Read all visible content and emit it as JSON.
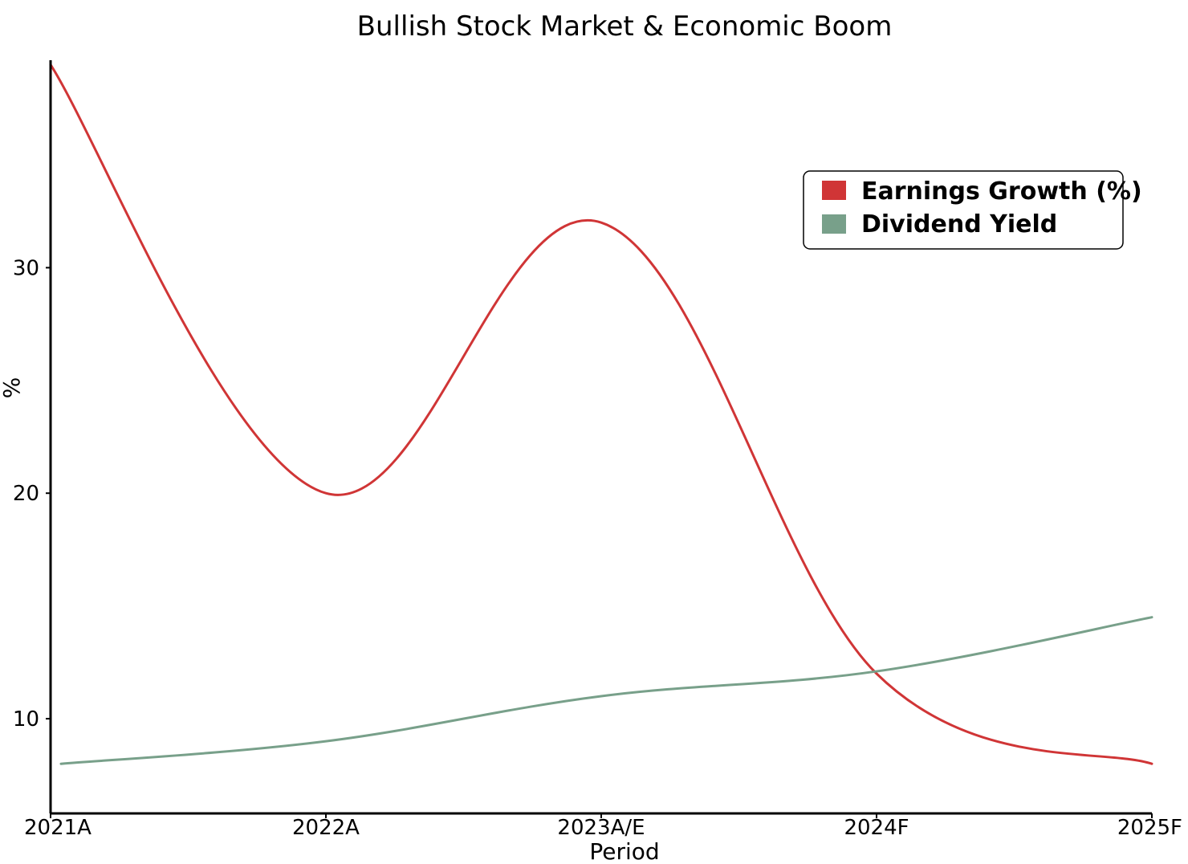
{
  "chart_data": {
    "type": "line",
    "title": "Bullish Stock Market & Economic Boom",
    "xlabel": "Period",
    "ylabel": "%",
    "categories": [
      "2021A",
      "2022A",
      "2023A/E",
      "2024F",
      "2025F"
    ],
    "ylim": [
      5.8,
      39.2
    ],
    "yticks": [
      10,
      20,
      30
    ],
    "legend_position": "top-right",
    "grid": false,
    "series": [
      {
        "name": "Earnings Growth (%)",
        "color": "#d03536",
        "values": [
          39,
          20,
          32,
          12,
          8
        ]
      },
      {
        "name": "Dividend Yield",
        "color": "#78a08a",
        "values": [
          8,
          9,
          11,
          12.1,
          14.5
        ]
      }
    ]
  }
}
